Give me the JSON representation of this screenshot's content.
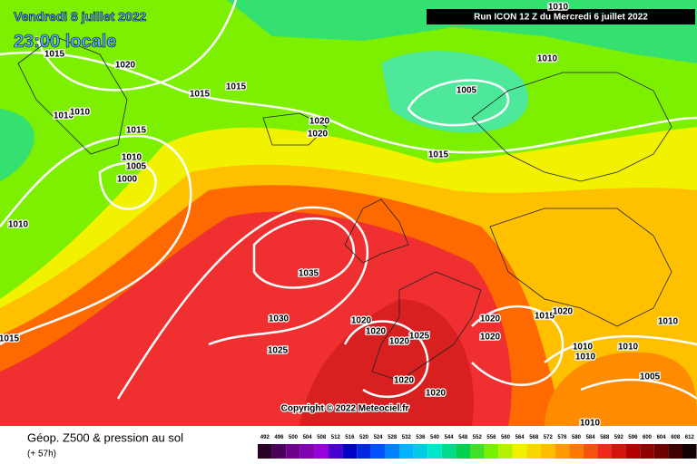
{
  "header": {
    "date": "Vendredi 8 juillet 2022",
    "time": "23:00 locale",
    "run": "Run ICON 12 Z du Mercredi 6 juillet 2022"
  },
  "isobar_labels": [
    "1015",
    "1020",
    "1015",
    "1015",
    "1010",
    "1010",
    "1015",
    "1020",
    "1020",
    "1010",
    "1005",
    "1015",
    "1010",
    "1005",
    "1000",
    "1010",
    "1035",
    "1030",
    "1025",
    "1015",
    "1020",
    "1020",
    "1020",
    "1025",
    "1020",
    "1020",
    "1015",
    "1020",
    "1010",
    "1010",
    "1010",
    "1010",
    "1005",
    "1020",
    "1020",
    "1010",
    "1010"
  ],
  "copyright": "Copyright © 2022 Meteociel.fr",
  "legend": {
    "title": "Géop. Z500 & pression au sol",
    "lead": "(+ 57h)",
    "scale": [
      "492",
      "496",
      "500",
      "504",
      "508",
      "512",
      "516",
      "520",
      "524",
      "528",
      "532",
      "536",
      "540",
      "544",
      "548",
      "552",
      "556",
      "560",
      "564",
      "568",
      "572",
      "576",
      "580",
      "584",
      "588",
      "592",
      "596",
      "600",
      "604",
      "608",
      "612"
    ]
  }
}
